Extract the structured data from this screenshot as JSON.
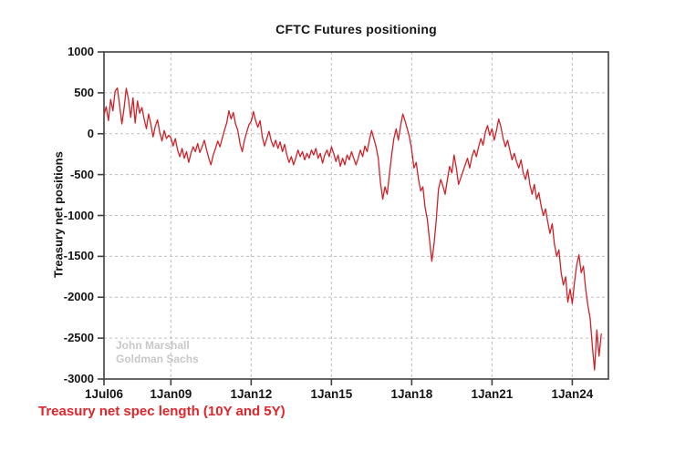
{
  "title": "CFTC Futures positioning",
  "ylabel": "Treasury net positions",
  "footer": {
    "text": "Treasury net spec length (10Y and 5Y)"
  },
  "watermark": {
    "line1": "John Marshall",
    "line2": "Goldman Sachs"
  },
  "colors": {
    "line": "#cf2128",
    "footer_text": "#e0252b",
    "grid": "#bdbdbd",
    "frame": "#3f3f3f",
    "watermark": "#c8c8c8",
    "text": "#151515"
  },
  "chart_data": {
    "type": "line",
    "title": "CFTC Futures positioning",
    "xlabel": "",
    "ylabel": "Treasury net positions",
    "ylim": [
      -3000,
      1000
    ],
    "y_ticks": [
      1000,
      500,
      0,
      -500,
      -1000,
      -1500,
      -2000,
      -2500,
      -3000
    ],
    "x_start_year": 2006.5,
    "x_end_year": 2025.35,
    "x_ticks": [
      {
        "t": 2006.5,
        "label": "1Jul06"
      },
      {
        "t": 2009.0,
        "label": "1Jan09"
      },
      {
        "t": 2012.0,
        "label": "1Jan12"
      },
      {
        "t": 2015.0,
        "label": "1Jan15"
      },
      {
        "t": 2018.0,
        "label": "1Jan18"
      },
      {
        "t": 2021.0,
        "label": "1Jan21"
      },
      {
        "t": 2024.0,
        "label": "1Jan24"
      }
    ],
    "grid": "dashed-both-axes",
    "legend_position": "none",
    "series": [
      {
        "name": "Treasury net spec length (10Y and 5Y)",
        "start": "2006-07",
        "freq": "monthly",
        "t0": 2006.5,
        "dt_years": 0.0833333,
        "values": [
          230,
          330,
          160,
          420,
          280,
          520,
          560,
          350,
          120,
          310,
          555,
          420,
          200,
          440,
          130,
          400,
          250,
          320,
          180,
          60,
          240,
          120,
          -40,
          90,
          170,
          20,
          -90,
          40,
          -60,
          -20,
          -50,
          -150,
          -60,
          -200,
          -280,
          -180,
          -300,
          -220,
          -350,
          -240,
          -160,
          -220,
          -120,
          -230,
          -160,
          -80,
          -200,
          -300,
          -380,
          -260,
          -180,
          -90,
          -160,
          -60,
          40,
          130,
          280,
          180,
          260,
          120,
          40,
          -120,
          -220,
          -80,
          20,
          110,
          150,
          270,
          160,
          80,
          160,
          -40,
          -150,
          -60,
          30,
          -90,
          -160,
          -80,
          -180,
          -100,
          -220,
          -130,
          -260,
          -350,
          -280,
          -380,
          -300,
          -200,
          -280,
          -220,
          -320,
          -240,
          -300,
          -200,
          -260,
          -180,
          -300,
          -240,
          -360,
          -260,
          -200,
          -280,
          -160,
          -240,
          -340,
          -260,
          -400,
          -300,
          -380,
          -260,
          -320,
          -220,
          -300,
          -380,
          -300,
          -200,
          -280,
          -150,
          -220,
          -80,
          40,
          -60,
          -160,
          -300,
          -600,
          -800,
          -650,
          -740,
          -500,
          -260,
          -60,
          60,
          -80,
          100,
          240,
          160,
          60,
          -40,
          -200,
          -420,
          -350,
          -550,
          -700,
          -650,
          -900,
          -1050,
          -1300,
          -1560,
          -1350,
          -1050,
          -680,
          -560,
          -640,
          -740,
          -560,
          -400,
          -480,
          -260,
          -420,
          -620,
          -540,
          -460,
          -380,
          -300,
          -420,
          -280,
          -200,
          -280,
          -160,
          -60,
          -140,
          20,
          100,
          -20,
          60,
          -80,
          40,
          180,
          80,
          -60,
          -160,
          -80,
          -200,
          -320,
          -240,
          -340,
          -420,
          -320,
          -480,
          -560,
          -440,
          -620,
          -740,
          -620,
          -800,
          -720,
          -880,
          -1000,
          -920,
          -1080,
          -1220,
          -1100,
          -1350,
          -1500,
          -1420,
          -1700,
          -1850,
          -1750,
          -2060,
          -1900,
          -2080,
          -1820,
          -1600,
          -1480,
          -1700,
          -1620,
          -1900,
          -2100,
          -2260,
          -2600,
          -2890,
          -2400,
          -2720,
          -2450
        ]
      }
    ]
  }
}
